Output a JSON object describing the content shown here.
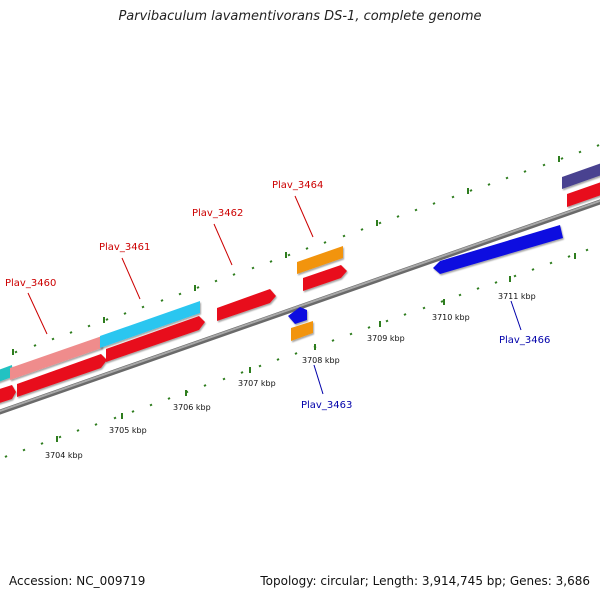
{
  "title": "Parvibaculum lavamentivorans DS-1, complete genome",
  "accession": "Accession: NC_009719",
  "topology": "Topology: circular; Length: 3,914,745 bp; Genes: 3,686",
  "scale_labels": [
    "3704 kbp",
    "3705 kbp",
    "3706 kbp",
    "3707 kbp",
    "3708 kbp",
    "3709 kbp",
    "3710 kbp",
    "3711 kbp"
  ],
  "gene_labels": {
    "forward": [
      "Plav_3460",
      "Plav_3461",
      "Plav_3462",
      "Plav_3464"
    ],
    "reverse": [
      "Plav_3463",
      "Plav_3466"
    ]
  },
  "colors": {
    "backbone": "#8a8a8a",
    "cds_forward": "#e8101a",
    "cds_reverse": "#1010e0",
    "orange": "#f29410",
    "cyan": "#2bc6f0",
    "pink": "#ef8c8c",
    "teal": "#22c2c2",
    "slate": "#4a4290",
    "ticks": "#2e7d1e",
    "label_forward": "#cc0000",
    "label_reverse": "#0000aa"
  }
}
